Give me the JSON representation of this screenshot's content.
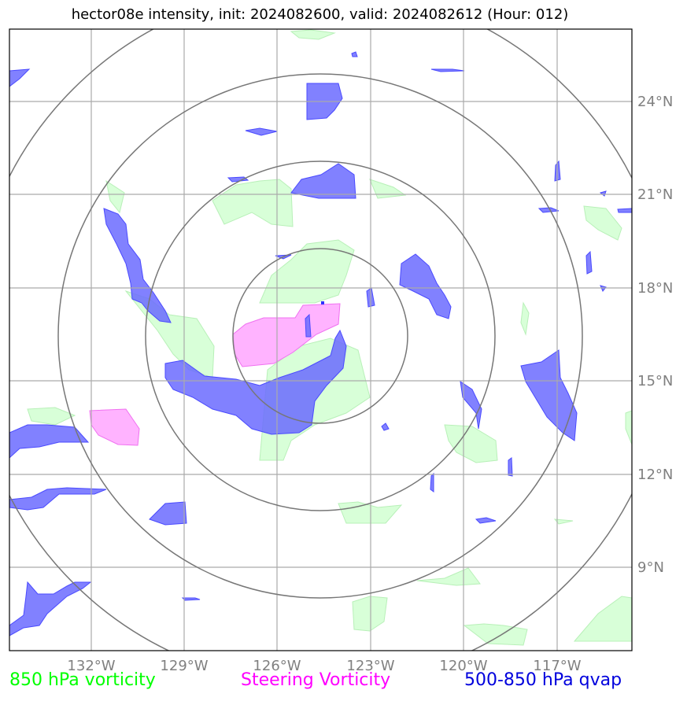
{
  "title": "hector08e intensity, init: 2024082600, valid: 2024082612 (Hour: 012)",
  "map": {
    "lon_range": [
      -134.6,
      -114.4
    ],
    "lat_range": [
      6.5,
      26.5
    ],
    "lon_ticks": [
      "132°W",
      "129°W",
      "126°W",
      "123°W",
      "120°W",
      "117°W"
    ],
    "lat_ticks": [
      "24°N",
      "21°N",
      "18°N",
      "15°N",
      "12°N",
      "9°N"
    ],
    "grid": true,
    "range_rings": 4,
    "colors": {
      "vorticity_850": "#00ff00",
      "steering_vorticity": "#ff00ff",
      "qvap_500_850": "#0000dd",
      "qvap_fill": "#6b6bff",
      "steering_fill": "#ffb3ff",
      "vorticity_fill": "#d8ffd8"
    }
  },
  "legend": {
    "vorticity_850": "850 hPa vorticity",
    "steering_vorticity": "Steering Vorticity",
    "qvap_500_850": "500-850 hPa qvap"
  }
}
